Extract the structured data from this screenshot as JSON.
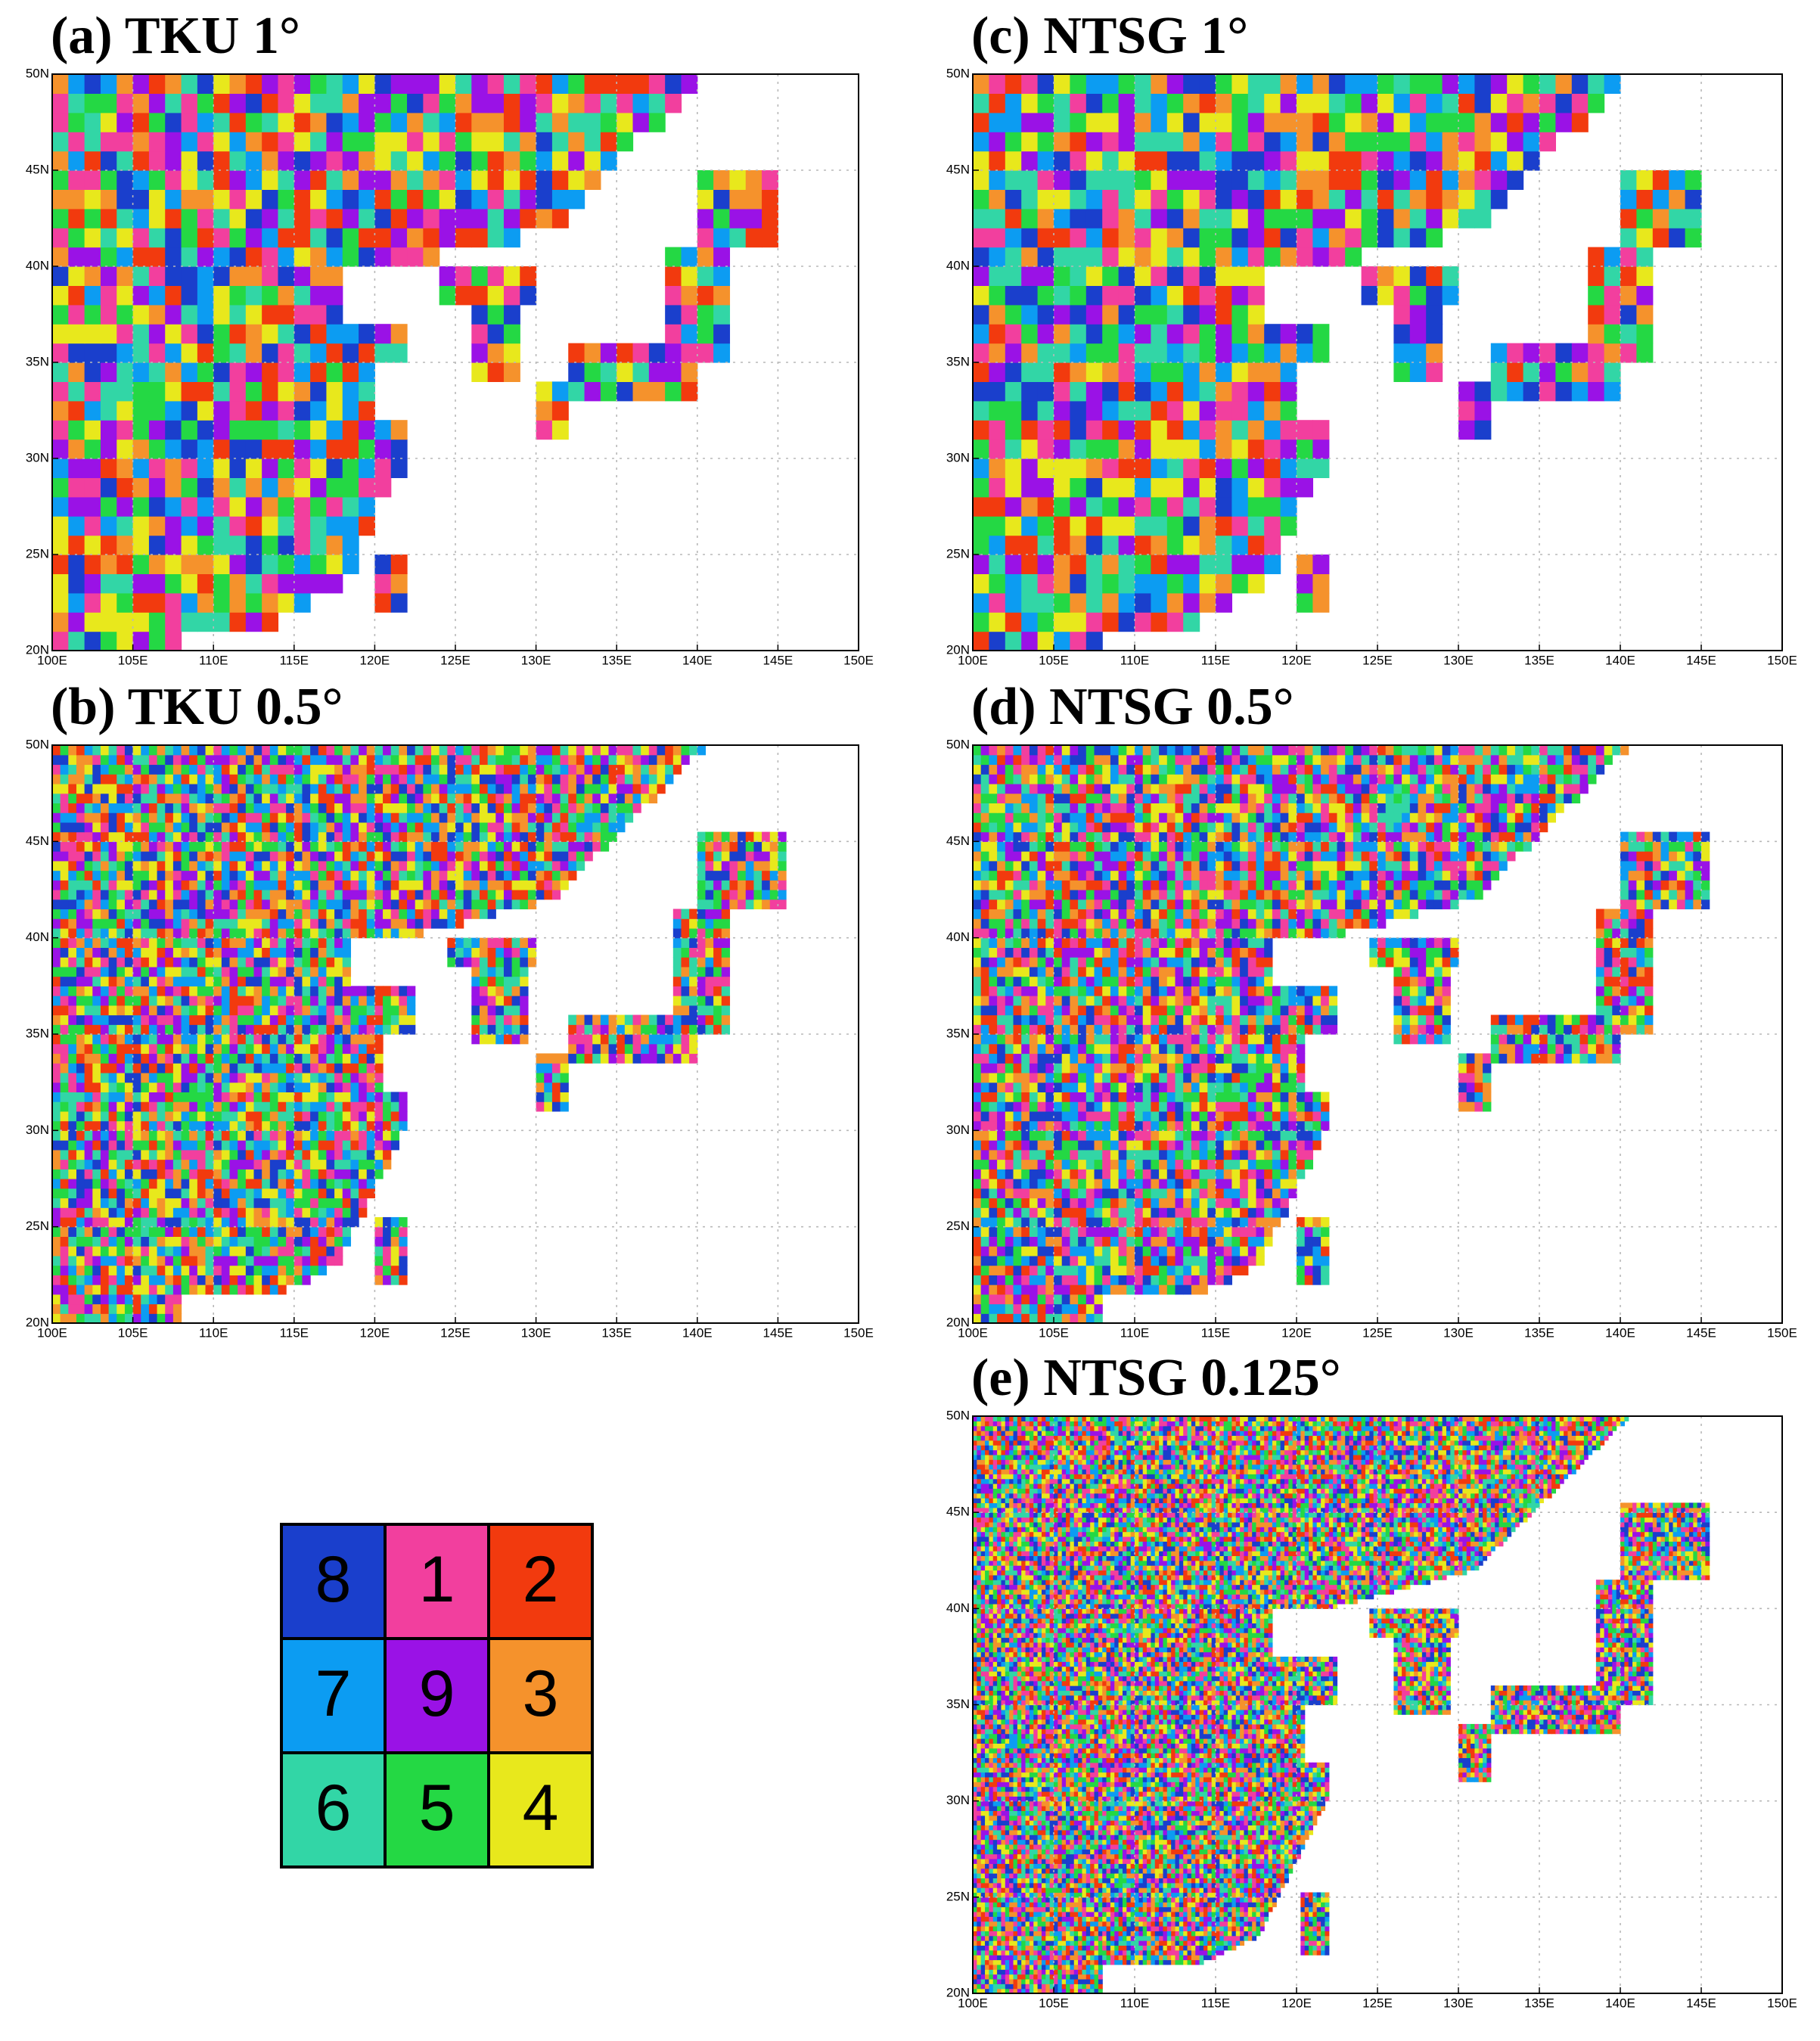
{
  "panels": [
    {
      "title": "(a) TKU 1°",
      "xticks": [
        "100E",
        "105E",
        "110E",
        "115E",
        "120E",
        "125E",
        "130E",
        "135E",
        "140E",
        "145E",
        "150E"
      ],
      "yticks": [
        "20N",
        "25N",
        "30N",
        "35N",
        "40N",
        "45N",
        "50N"
      ]
    },
    {
      "title": "(b) TKU 0.5°",
      "xticks": [
        "100E",
        "105E",
        "110E",
        "115E",
        "120E",
        "125E",
        "130E",
        "135E",
        "140E",
        "145E",
        "150E"
      ],
      "yticks": [
        "20N",
        "25N",
        "30N",
        "35N",
        "40N",
        "45N",
        "50N"
      ]
    },
    {
      "title": "(c) NTSG 1°",
      "xticks": [
        "100E",
        "105E",
        "110E",
        "115E",
        "120E",
        "125E",
        "130E",
        "135E",
        "140E",
        "145E",
        "150E"
      ],
      "yticks": [
        "20N",
        "25N",
        "30N",
        "35N",
        "40N",
        "45N",
        "50N"
      ]
    },
    {
      "title": "(d) NTSG 0.5°",
      "xticks": [
        "100E",
        "105E",
        "110E",
        "115E",
        "120E",
        "125E",
        "130E",
        "135E",
        "140E",
        "145E",
        "150E"
      ],
      "yticks": [
        "20N",
        "25N",
        "30N",
        "35N",
        "40N",
        "45N",
        "50N"
      ]
    },
    {
      "title": "(e) NTSG 0.125°",
      "xticks": [
        "100E",
        "105E",
        "110E",
        "115E",
        "120E",
        "125E",
        "130E",
        "135E",
        "140E",
        "145E",
        "150E"
      ],
      "yticks": [
        "20N",
        "25N",
        "30N",
        "35N",
        "40N",
        "45N",
        "50N"
      ]
    }
  ],
  "legend": {
    "rows": [
      [
        {
          "label": "8",
          "color": "#1a3fcc"
        },
        {
          "label": "1",
          "color": "#f23f9e"
        },
        {
          "label": "2",
          "color": "#f23a0e"
        }
      ],
      [
        {
          "label": "7",
          "color": "#0c9cf2"
        },
        {
          "label": "9",
          "color": "#9a12e6"
        },
        {
          "label": "3",
          "color": "#f5922c"
        }
      ],
      [
        {
          "label": "6",
          "color": "#32d6a6"
        },
        {
          "label": "5",
          "color": "#24d844"
        },
        {
          "label": "4",
          "color": "#e8e81c"
        }
      ]
    ]
  }
}
